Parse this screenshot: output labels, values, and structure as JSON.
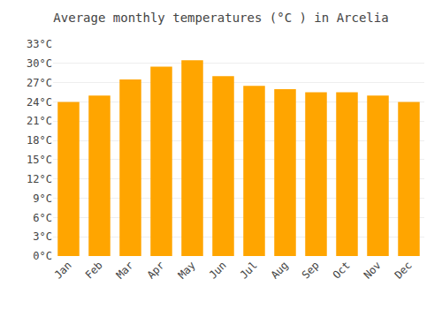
{
  "chart_data": {
    "type": "bar",
    "title": "Average monthly temperatures (°C ) in Arcelia",
    "categories": [
      "Jan",
      "Feb",
      "Mar",
      "Apr",
      "May",
      "Jun",
      "Jul",
      "Aug",
      "Sep",
      "Oct",
      "Nov",
      "Dec"
    ],
    "values": [
      24.0,
      25.0,
      27.5,
      29.5,
      30.5,
      28.0,
      26.5,
      26.0,
      25.5,
      25.5,
      25.0,
      24.0
    ],
    "color": "#FFA500",
    "ylim": [
      0,
      33
    ],
    "yticks": [
      {
        "value": 0,
        "label": "0°C"
      },
      {
        "value": 3,
        "label": "3°C"
      },
      {
        "value": 6,
        "label": "6°C"
      },
      {
        "value": 9,
        "label": "9°C"
      },
      {
        "value": 12,
        "label": "12°C"
      },
      {
        "value": 15,
        "label": "15°C"
      },
      {
        "value": 18,
        "label": "18°C"
      },
      {
        "value": 21,
        "label": "21°C"
      },
      {
        "value": 24,
        "label": "24°C"
      },
      {
        "value": 27,
        "label": "27°C"
      },
      {
        "value": 30,
        "label": "30°C"
      },
      {
        "value": 33,
        "label": "33°C"
      }
    ],
    "grid": true
  }
}
